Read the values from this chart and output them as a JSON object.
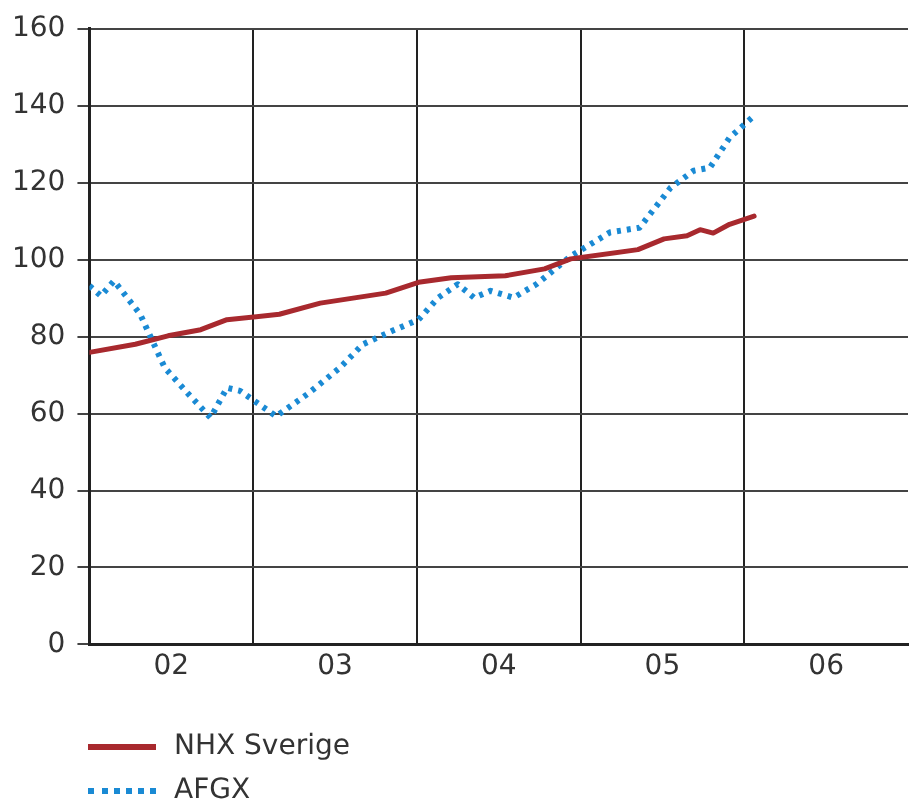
{
  "chart_data": {
    "type": "line",
    "xlim": [
      1.5,
      6.5
    ],
    "ylim": [
      0,
      160
    ],
    "xticks": [
      {
        "value": 2,
        "label": "02"
      },
      {
        "value": 2.5,
        "label": null
      },
      {
        "value": 3,
        "label": "03"
      },
      {
        "value": 3.5,
        "label": null
      },
      {
        "value": 4,
        "label": "04"
      },
      {
        "value": 4.5,
        "label": null
      },
      {
        "value": 5,
        "label": "05"
      },
      {
        "value": 5.5,
        "label": null
      },
      {
        "value": 6,
        "label": "06"
      }
    ],
    "yticks": [
      0,
      20,
      40,
      60,
      80,
      100,
      120,
      140,
      160
    ],
    "grid": true,
    "legend": "bottom left",
    "marker": "none",
    "series": [
      {
        "name": "NHX Sverige",
        "color": "#a8292e",
        "line_style": "solid",
        "x": [
          1.5,
          1.78,
          1.98,
          2.18,
          2.34,
          2.66,
          2.91,
          3.31,
          3.51,
          3.71,
          4.04,
          4.28,
          4.44,
          4.85,
          5.01,
          5.15,
          5.23,
          5.31,
          5.41,
          5.56
        ],
        "values": [
          75.9,
          78.0,
          80.2,
          81.8,
          84.4,
          85.8,
          88.7,
          91.3,
          94.1,
          95.3,
          95.8,
          97.6,
          100.2,
          102.6,
          105.4,
          106.2,
          107.8,
          106.9,
          109.2,
          111.3
        ]
      },
      {
        "name": "AFGX",
        "color": "#1a8ad4",
        "line_style": "dotted",
        "x": [
          1.5,
          1.57,
          1.65,
          1.81,
          1.96,
          2.1,
          2.24,
          2.34,
          2.42,
          2.64,
          2.83,
          3.03,
          3.17,
          3.35,
          3.51,
          3.63,
          3.75,
          3.85,
          3.95,
          4.09,
          4.23,
          4.44,
          4.68,
          4.86,
          5.05,
          5.19,
          5.29,
          5.41,
          5.56
        ],
        "values": [
          93.2,
          90.6,
          94.5,
          85.8,
          71.9,
          65.3,
          58.9,
          66.7,
          65.9,
          59.3,
          65.0,
          71.9,
          78.0,
          81.5,
          84.4,
          90.1,
          93.6,
          90.1,
          91.9,
          90.1,
          93.6,
          100.9,
          107.1,
          108.3,
          118.7,
          123.1,
          123.9,
          131.7,
          137.4
        ]
      }
    ]
  }
}
